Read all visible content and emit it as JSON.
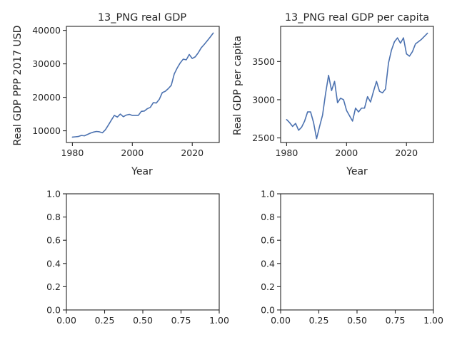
{
  "chart_data": [
    {
      "type": "line",
      "title": "13_PNG real GDP",
      "xlabel": "Year",
      "ylabel": "Real GDP PPP 2017 USD",
      "xlim": [
        1978,
        2029
      ],
      "ylim": [
        6500,
        41200
      ],
      "xticks": [
        1980,
        2000,
        2020
      ],
      "xtick_labels": [
        "1980",
        "2000",
        "2020"
      ],
      "yticks": [
        10000,
        20000,
        30000,
        40000
      ],
      "ytick_labels": [
        "10000",
        "20000",
        "30000",
        "40000"
      ],
      "series": [
        {
          "name": "real GDP",
          "color": "#4c72b0",
          "x": [
            1980,
            1981,
            1982,
            1983,
            1984,
            1985,
            1986,
            1987,
            1988,
            1989,
            1990,
            1991,
            1992,
            1993,
            1994,
            1995,
            1996,
            1997,
            1998,
            1999,
            2000,
            2001,
            2002,
            2003,
            2004,
            2005,
            2006,
            2007,
            2008,
            2009,
            2010,
            2011,
            2012,
            2013,
            2014,
            2015,
            2016,
            2017,
            2018,
            2019,
            2020,
            2021,
            2022,
            2023,
            2024,
            2025,
            2026,
            2027
          ],
          "values": [
            8100,
            8200,
            8300,
            8600,
            8500,
            8900,
            9300,
            9600,
            9800,
            9700,
            9400,
            10300,
            11700,
            13200,
            14600,
            14100,
            15000,
            14200,
            14700,
            14900,
            14600,
            14600,
            14600,
            15800,
            15900,
            16600,
            17000,
            18400,
            18300,
            19400,
            21400,
            21800,
            22600,
            23600,
            27000,
            28800,
            30300,
            31400,
            31200,
            32800,
            31600,
            32100,
            33300,
            34800,
            35800,
            36900,
            38000,
            39200
          ]
        }
      ]
    },
    {
      "type": "line",
      "title": "13_PNG real GDP per capita",
      "xlabel": "Year",
      "ylabel": "Real GDP per capita",
      "xlim": [
        1978,
        2029
      ],
      "ylim": [
        2440,
        3960
      ],
      "xticks": [
        1980,
        2000,
        2020
      ],
      "xtick_labels": [
        "1980",
        "2000",
        "2020"
      ],
      "yticks": [
        2500,
        3000,
        3500
      ],
      "ytick_labels": [
        "2500",
        "3000",
        "3500"
      ],
      "series": [
        {
          "name": "real GDP per capita",
          "color": "#4c72b0",
          "x": [
            1980,
            1981,
            1982,
            1983,
            1984,
            1985,
            1986,
            1987,
            1988,
            1989,
            1990,
            1991,
            1992,
            1993,
            1994,
            1995,
            1996,
            1997,
            1998,
            1999,
            2000,
            2001,
            2002,
            2003,
            2004,
            2005,
            2006,
            2007,
            2008,
            2009,
            2010,
            2011,
            2012,
            2013,
            2014,
            2015,
            2016,
            2017,
            2018,
            2019,
            2020,
            2021,
            2022,
            2023,
            2024,
            2025,
            2026,
            2027
          ],
          "values": [
            2740,
            2700,
            2650,
            2690,
            2600,
            2640,
            2720,
            2840,
            2840,
            2700,
            2490,
            2650,
            2800,
            3080,
            3320,
            3120,
            3240,
            2960,
            3020,
            3000,
            2860,
            2790,
            2720,
            2890,
            2840,
            2890,
            2890,
            3040,
            2970,
            3110,
            3240,
            3110,
            3090,
            3140,
            3480,
            3650,
            3760,
            3810,
            3740,
            3810,
            3600,
            3570,
            3630,
            3730,
            3760,
            3790,
            3830,
            3870
          ]
        }
      ]
    },
    {
      "type": "line",
      "title": "",
      "xlabel": "",
      "ylabel": "",
      "xlim": [
        0,
        1
      ],
      "ylim": [
        0,
        1
      ],
      "xticks": [
        0,
        0.25,
        0.5,
        0.75,
        1
      ],
      "xtick_labels": [
        "0.00",
        "0.25",
        "0.50",
        "0.75",
        "1.00"
      ],
      "yticks": [
        0,
        0.2,
        0.4,
        0.6,
        0.8,
        1
      ],
      "ytick_labels": [
        "0.0",
        "0.2",
        "0.4",
        "0.6",
        "0.8",
        "1.0"
      ],
      "series": []
    },
    {
      "type": "line",
      "title": "",
      "xlabel": "",
      "ylabel": "",
      "xlim": [
        0,
        1
      ],
      "ylim": [
        0,
        1
      ],
      "xticks": [
        0,
        0.25,
        0.5,
        0.75,
        1
      ],
      "xtick_labels": [
        "0.00",
        "0.25",
        "0.50",
        "0.75",
        "1.00"
      ],
      "yticks": [
        0,
        0.2,
        0.4,
        0.6,
        0.8,
        1
      ],
      "ytick_labels": [
        "0.0",
        "0.2",
        "0.4",
        "0.6",
        "0.8",
        "1.0"
      ],
      "series": []
    }
  ]
}
